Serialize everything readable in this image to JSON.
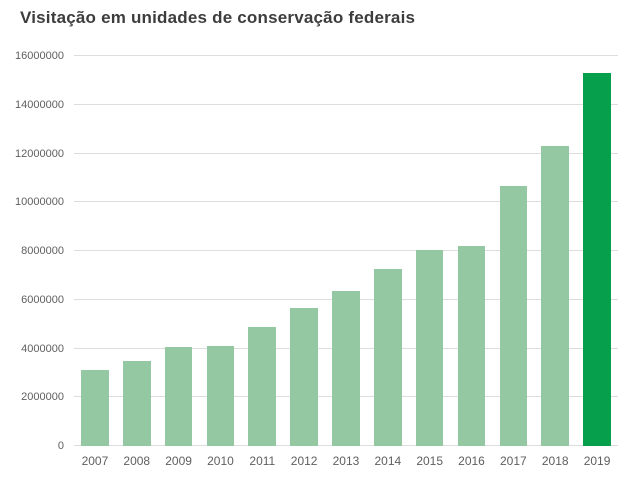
{
  "title": "Visitação em unidades de conservação federais",
  "colors": {
    "bar": "#93c8a3",
    "bar_highlight": "#06a04c",
    "title_text": "#3d3d3d",
    "axis_text": "#5f5f5f",
    "gridline": "#dddddd",
    "background": "#ffffff"
  },
  "chart_data": {
    "type": "bar",
    "title": "Visitação em unidades de conservação federais",
    "xlabel": "",
    "ylabel": "",
    "categories": [
      "2007",
      "2008",
      "2009",
      "2010",
      "2011",
      "2012",
      "2013",
      "2014",
      "2015",
      "2016",
      "2017",
      "2018",
      "2019"
    ],
    "values": [
      3100000,
      3500000,
      4050000,
      4100000,
      4900000,
      5650000,
      6350000,
      7250000,
      8050000,
      8200000,
      10650000,
      12300000,
      15300000
    ],
    "highlight_index": 12,
    "ylim": [
      0,
      16000000
    ],
    "yticks": [
      0,
      2000000,
      4000000,
      6000000,
      8000000,
      10000000,
      12000000,
      14000000,
      16000000
    ],
    "ytick_labels": [
      "0",
      "2000000",
      "4000000",
      "6000000",
      "8000000",
      "10000000",
      "12000000",
      "14000000",
      "16000000"
    ],
    "grid": true,
    "legend_position": "none"
  }
}
